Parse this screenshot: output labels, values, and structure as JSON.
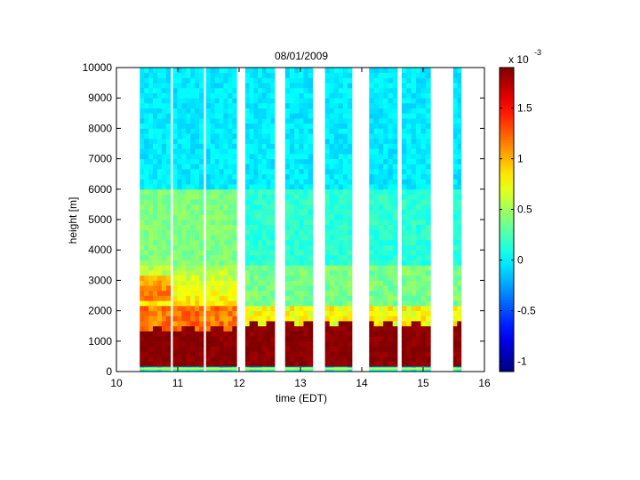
{
  "chart_data": {
    "type": "heatmap",
    "title": "08/01/2009",
    "xlabel": "time (EDT)",
    "ylabel": "height [m]",
    "xlim": [
      10,
      16
    ],
    "ylim": [
      0,
      10000
    ],
    "x_ticks": [
      10,
      11,
      12,
      13,
      14,
      15,
      16
    ],
    "y_ticks": [
      0,
      1000,
      2000,
      3000,
      4000,
      5000,
      6000,
      7000,
      8000,
      9000,
      10000
    ],
    "colorbar": {
      "colormap": "jet",
      "multiplier_label": "x 10",
      "multiplier_exponent": "-3",
      "clim": [
        -1.1,
        1.9
      ],
      "ticks": [
        -1,
        -0.5,
        0,
        0.5,
        1,
        1.5
      ],
      "tick_labels": [
        "-1",
        "-0.5",
        "0",
        "0.5",
        "1",
        "1.5"
      ]
    },
    "data_segments": [
      {
        "start": 10.38,
        "end": 10.88
      },
      {
        "start": 10.92,
        "end": 11.42
      },
      {
        "start": 11.46,
        "end": 11.96
      },
      {
        "start": 12.1,
        "end": 12.58
      },
      {
        "start": 12.75,
        "end": 13.2
      },
      {
        "start": 13.4,
        "end": 13.84
      },
      {
        "start": 14.12,
        "end": 14.58
      },
      {
        "start": 14.65,
        "end": 15.12
      },
      {
        "start": 15.49,
        "end": 15.62
      }
    ],
    "profile_features": {
      "surface_layer_top_m": 150,
      "boundary_layer_top_early_m": 1400,
      "boundary_layer_top_late_m": 1600,
      "elevated_layer_m": [
        2500,
        3500
      ],
      "upper_layer_m": [
        4000,
        6000
      ]
    }
  }
}
